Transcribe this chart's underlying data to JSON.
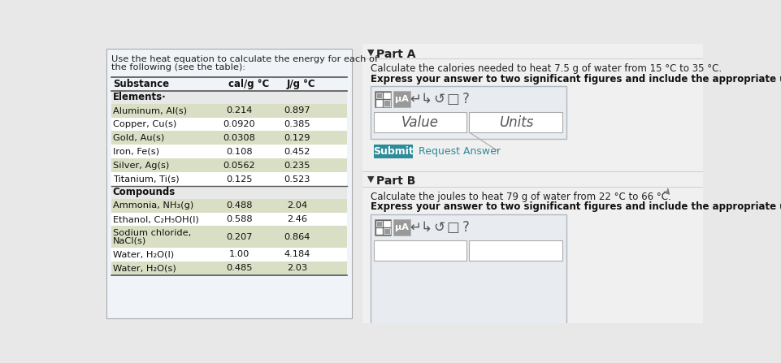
{
  "bg_color": "#e8e8e8",
  "panel_bg": "#f0f4f8",
  "right_bg": "#f5f5f5",
  "header_text_line1": "Use the heat equation to calculate the energy for each of",
  "header_text_line2": "the following (see the table):",
  "col1_header": "Substance",
  "col2_header": "cal/g °C",
  "col3_header": "J/g °C",
  "section1": "Elements·",
  "substances": [
    [
      "Aluminum, Al(s)",
      "0.214",
      "0.897"
    ],
    [
      "Copper, Cu(s)",
      "0.0920",
      "0.385"
    ],
    [
      "Gold, Au(s)",
      "0.0308",
      "0.129"
    ],
    [
      "Iron, Fe(s)",
      "0.108",
      "0.452"
    ],
    [
      "Silver, Ag(s)",
      "0.0562",
      "0.235"
    ],
    [
      "Titanium, Ti(s)",
      "0.125",
      "0.523"
    ]
  ],
  "section2": "Compounds",
  "compounds": [
    [
      "Ammonia, NH₃(g)",
      "0.488",
      "2.04"
    ],
    [
      "Ethanol, C₂H₅OH(l)",
      "0.588",
      "2.46"
    ],
    [
      "Sodium chloride,\nNaCl(s)",
      "0.207",
      "0.864"
    ],
    [
      "Water, H₂O(l)",
      "1.00",
      "4.184"
    ],
    [
      "Water, H₂O(s)",
      "0.485",
      "2.03"
    ]
  ],
  "part_a_label": "Part A",
  "part_a_question": "Calculate the calories needed to heat 7.5 g of water from 15 °C to 35 °C.",
  "part_a_instruction": "Express your answer to two significant figures and include the appropriate units.",
  "value_label": "Value",
  "units_label": "Units",
  "submit_label": "Submit",
  "request_label": "Request Answer",
  "part_b_label": "Part B",
  "part_b_question": "Calculate the joules to heat 79 g of water from 22 °C to 66 °C.",
  "part_b_instruction": "Express your answer to two significant figures and include the appropriate units.",
  "submit_color": "#2e8b9a",
  "row_tan": "#d8dfc4",
  "row_white": "#ffffff",
  "section_bg": "#e8e8e8",
  "header_col_bg": "#e8e8e8"
}
